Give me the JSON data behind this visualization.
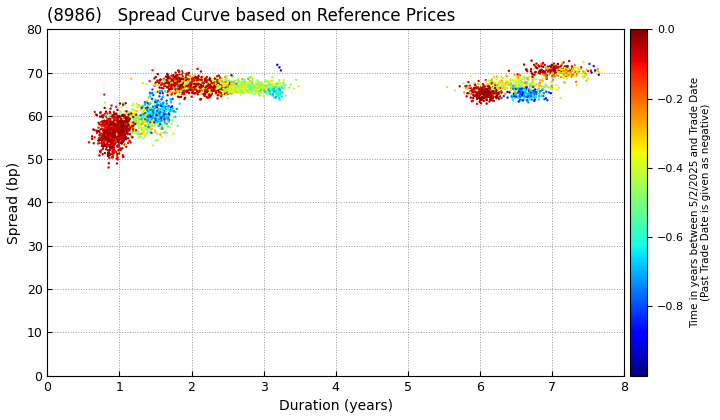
{
  "title": "(8986)   Spread Curve based on Reference Prices",
  "xlabel": "Duration (years)",
  "ylabel": "Spread (bp)",
  "colorbar_label_line1": "Time in years between 5/2/2025 and Trade Date",
  "colorbar_label_line2": "(Past Trade Date is given as negative)",
  "xlim": [
    0,
    8
  ],
  "ylim": [
    0,
    80
  ],
  "xticks": [
    0,
    1,
    2,
    3,
    4,
    5,
    6,
    7,
    8
  ],
  "yticks": [
    0,
    10,
    20,
    30,
    40,
    50,
    60,
    70,
    80
  ],
  "clim": [
    -1.0,
    0.0
  ],
  "cticks": [
    0.0,
    -0.2,
    -0.4,
    -0.6,
    -0.8
  ],
  "background_color": "#ffffff",
  "figsize": [
    7.2,
    4.2
  ],
  "dpi": 100,
  "point_size": 3,
  "cmap": "jet"
}
